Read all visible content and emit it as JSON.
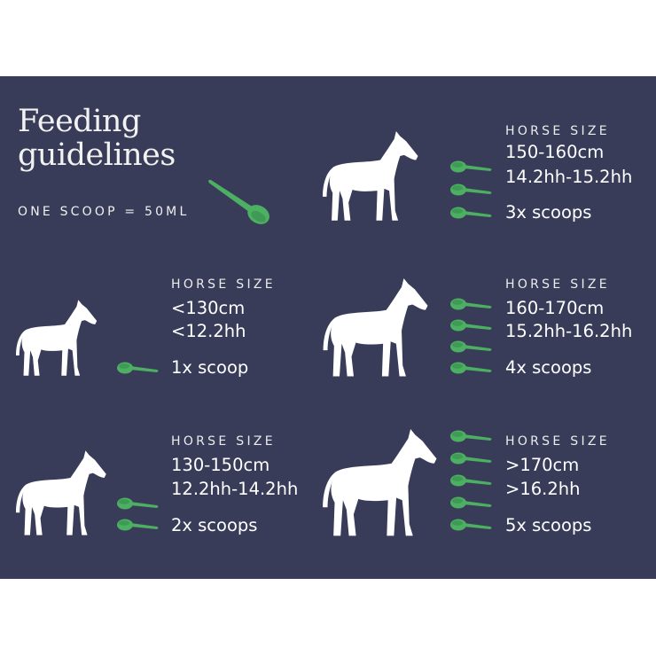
{
  "header": {
    "title_line1": "Feeding",
    "title_line2": "guidelines",
    "scoop_note": "ONE SCOOP = 50ML"
  },
  "colors": {
    "background": "#383c58",
    "scoop": "#4caf62",
    "text": "#ffffff"
  },
  "icons": {
    "horse": "horse-silhouette-icon",
    "scoop": "scoop-icon"
  },
  "sections": [
    {
      "label": "HORSE SIZE",
      "height_cm": "<130cm",
      "height_hh": "<12.2hh",
      "amount": "1x scoop",
      "scoops": 1
    },
    {
      "label": "HORSE SIZE",
      "height_cm": "130-150cm",
      "height_hh": "12.2hh-14.2hh",
      "amount": "2x scoops",
      "scoops": 2
    },
    {
      "label": "HORSE SIZE",
      "height_cm": "150-160cm",
      "height_hh": "14.2hh-15.2hh",
      "amount": "3x scoops",
      "scoops": 3
    },
    {
      "label": "HORSE SIZE",
      "height_cm": "160-170cm",
      "height_hh": "15.2hh-16.2hh",
      "amount": "4x scoops",
      "scoops": 4
    },
    {
      "label": "HORSE SIZE",
      "height_cm": ">170cm",
      "height_hh": ">16.2hh",
      "amount": "5x scoops",
      "scoops": 5
    }
  ]
}
